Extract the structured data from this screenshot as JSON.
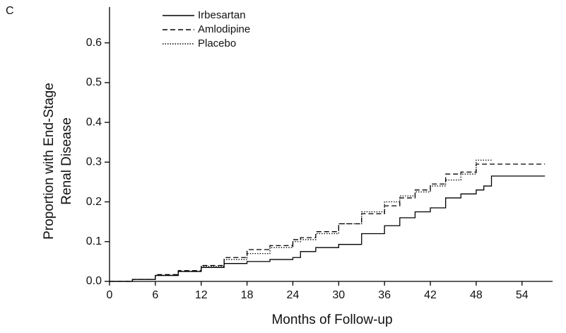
{
  "chart_data": {
    "type": "line",
    "panel_label": "C",
    "xlabel": "Months of Follow-up",
    "ylabel": [
      "Proportion with End-Stage",
      "Renal Disease"
    ],
    "x": [
      0,
      3,
      6,
      9,
      12,
      15,
      18,
      21,
      24,
      25,
      27,
      30,
      33,
      36,
      38,
      40,
      42,
      44,
      46,
      48,
      49,
      50,
      57
    ],
    "series": [
      {
        "name": "Irbesartan",
        "color": "#000000",
        "dash": "solid",
        "values": [
          0,
          0.005,
          0.015,
          0.025,
          0.035,
          0.045,
          0.05,
          0.055,
          0.06,
          0.075,
          0.085,
          0.093,
          0.12,
          0.14,
          0.16,
          0.175,
          0.185,
          0.21,
          0.22,
          0.23,
          0.24,
          0.265,
          0.265
        ]
      },
      {
        "name": "Amlodipine",
        "color": "#000000",
        "dash": "dashed",
        "values": [
          0,
          0.005,
          0.017,
          0.027,
          0.04,
          0.06,
          0.08,
          0.09,
          0.105,
          0.11,
          0.125,
          0.145,
          0.17,
          0.19,
          0.21,
          0.23,
          0.245,
          0.27,
          0.275,
          0.295,
          0.295,
          0.295,
          0.295
        ]
      },
      {
        "name": "Placebo",
        "color": "#000000",
        "dash": "dotted",
        "values": [
          0,
          0.005,
          0.015,
          0.025,
          0.038,
          0.055,
          0.07,
          0.085,
          0.1,
          0.105,
          0.12,
          0.145,
          0.175,
          0.2,
          0.215,
          0.225,
          0.24,
          0.255,
          0.27,
          0.305,
          0.305,
          0.305,
          null
        ]
      }
    ],
    "step": "post",
    "xlim": [
      0,
      58
    ],
    "ylim": [
      0,
      0.69
    ],
    "xticks": [
      0,
      6,
      12,
      18,
      24,
      30,
      36,
      42,
      48,
      54
    ],
    "yticks": [
      {
        "value": 0,
        "label": "0.0"
      },
      0.1,
      0.2,
      0.3,
      0.4,
      0.5,
      0.6
    ],
    "grid": false,
    "legend": "top-left"
  }
}
